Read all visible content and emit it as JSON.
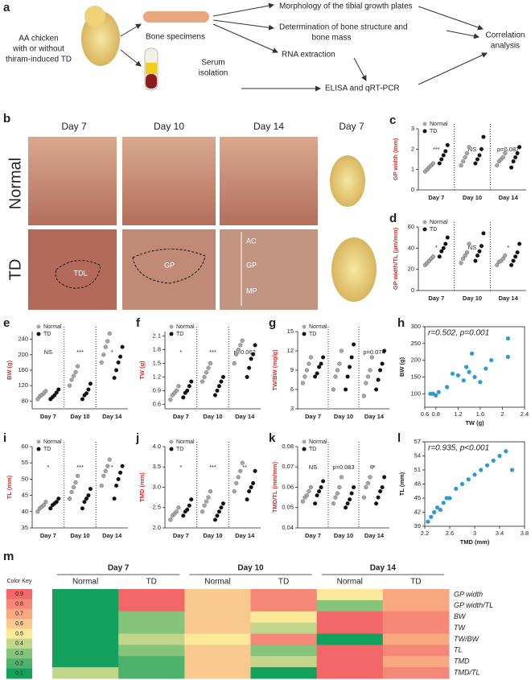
{
  "figure": {
    "a": {
      "label": "a",
      "source": [
        "AA chicken",
        "with or without",
        "thiram-induced TD"
      ],
      "bone": "Bone specimens",
      "serum": [
        "Serum",
        "isolation"
      ],
      "morphology": "Morphology of the tibial growth plates",
      "structure": [
        "Determination of bone structure and",
        "bone mass"
      ],
      "rna": "RNA extraction",
      "elisa": "ELISA and qRT-PCR",
      "correlation": [
        "Correlation",
        "analysis"
      ]
    },
    "b": {
      "label": "b",
      "days": [
        "Day 7",
        "Day 10",
        "Day 14",
        "Day 7"
      ],
      "rows": [
        "Normal",
        "TD"
      ],
      "annotations": [
        "TDL",
        "GP",
        "AC",
        "GP",
        "MP"
      ]
    }
  },
  "chart_data": [
    {
      "type": "dotplot",
      "panel": "c",
      "ylabel": "GP width (mm)",
      "categories": [
        "Day 7",
        "Day 10",
        "Day 14"
      ],
      "series": [
        {
          "name": "Normal",
          "color": "#a6a6a6",
          "values": [
            [
              0.9,
              1.0,
              1.1,
              1.2,
              1.3
            ],
            [
              1.2,
              1.4,
              1.6,
              1.8,
              2.1
            ],
            [
              1.2,
              1.4,
              1.5,
              1.6,
              1.8
            ]
          ]
        },
        {
          "name": "TD",
          "color": "#111111",
          "values": [
            [
              1.3,
              1.5,
              1.7,
              1.9,
              2.2
            ],
            [
              1.3,
              1.5,
              1.7,
              2.0,
              2.6
            ],
            [
              1.1,
              1.4,
              1.6,
              1.8,
              2.1
            ]
          ]
        }
      ],
      "ylim": [
        0,
        3
      ],
      "yticks": [
        0,
        1,
        2,
        3
      ],
      "significance": [
        "***",
        "NS",
        "p=0.087"
      ]
    },
    {
      "type": "dotplot",
      "panel": "d",
      "ylabel": "GP width/TL (μm/mm)",
      "categories": [
        "Day 7",
        "Day 10",
        "Day 14"
      ],
      "series": [
        {
          "name": "Normal",
          "color": "#a6a6a6",
          "values": [
            [
              24,
              26,
              28,
              30,
              32
            ],
            [
              26,
              30,
              33,
              36,
              44
            ],
            [
              24,
              27,
              28,
              30,
              33
            ]
          ]
        },
        {
          "name": "TD",
          "color": "#111111",
          "values": [
            [
              32,
              37,
              40,
              44,
              50
            ],
            [
              28,
              33,
              37,
              42,
              54
            ],
            [
              24,
              28,
              32,
              36,
              44
            ]
          ]
        }
      ],
      "ylim": [
        0,
        60
      ],
      "yticks": [
        0,
        20,
        40,
        60
      ],
      "significance": [
        "*",
        "NS",
        "*"
      ]
    },
    {
      "type": "dotplot",
      "panel": "e",
      "ylabel": "BW (g)",
      "categories": [
        "Day 7",
        "Day 10",
        "Day 14"
      ],
      "series": [
        {
          "name": "Normal",
          "color": "#a6a6a6",
          "values": [
            [
              85,
              92,
              96,
              100,
              106
            ],
            [
              120,
              135,
              145,
              155,
              170
            ],
            [
              180,
              200,
              220,
              235,
              255
            ]
          ]
        },
        {
          "name": "TD",
          "color": "#111111",
          "values": [
            [
              85,
              90,
              95,
              102,
              110
            ],
            [
              85,
              95,
              100,
              110,
              125
            ],
            [
              140,
              160,
              180,
              195,
              220
            ]
          ]
        }
      ],
      "ylim": [
        60,
        260
      ],
      "yticks": [
        80,
        120,
        160,
        200,
        240
      ],
      "significance": [
        "NS",
        "***",
        "*"
      ]
    },
    {
      "type": "dotplot",
      "panel": "f",
      "ylabel": "TW (g)",
      "categories": [
        "Day 7",
        "Day 10",
        "Day 14"
      ],
      "series": [
        {
          "name": "Normal",
          "color": "#a6a6a6",
          "values": [
            [
              0.7,
              0.8,
              0.85,
              0.9,
              1.0
            ],
            [
              1.1,
              1.2,
              1.3,
              1.4,
              1.5
            ],
            [
              1.5,
              1.7,
              1.8,
              1.9,
              2.0
            ]
          ]
        },
        {
          "name": "TD",
          "color": "#111111",
          "values": [
            [
              0.75,
              0.85,
              0.9,
              1.0,
              1.1
            ],
            [
              0.8,
              0.9,
              1.0,
              1.1,
              1.2
            ],
            [
              1.2,
              1.4,
              1.6,
              1.7,
              1.9
            ]
          ]
        }
      ],
      "ylim": [
        0.5,
        2.2
      ],
      "yticks": [
        0.6,
        0.9,
        1.2,
        1.5,
        1.8,
        2.1
      ],
      "significance": [
        "*",
        "***",
        "p=0.062"
      ]
    },
    {
      "type": "dotplot",
      "panel": "g",
      "ylabel": "TW/BW (mg/g)",
      "categories": [
        "Day 7",
        "Day 10",
        "Day 14"
      ],
      "series": [
        {
          "name": "Normal",
          "color": "#a6a6a6",
          "values": [
            [
              7,
              8,
              9,
              10,
              11
            ],
            [
              6,
              8,
              9,
              10,
              12
            ],
            [
              5,
              7,
              8,
              9,
              11
            ]
          ]
        },
        {
          "name": "TD",
          "color": "#111111",
          "values": [
            [
              8,
              8.5,
              9.5,
              10,
              11
            ],
            [
              6,
              8,
              9.5,
              11,
              13
            ],
            [
              6,
              7.5,
              9,
              10,
              12
            ]
          ]
        }
      ],
      "ylim": [
        3,
        15
      ],
      "yticks": [
        3,
        6,
        9,
        12,
        15
      ],
      "significance": [
        null,
        null,
        "p=0.074"
      ]
    },
    {
      "type": "dotplot",
      "panel": "i",
      "ylabel": "TL (mm)",
      "categories": [
        "Day 7",
        "Day 10",
        "Day 14"
      ],
      "series": [
        {
          "name": "Normal",
          "color": "#a6a6a6",
          "values": [
            [
              40,
              41,
              41.5,
              42,
              43
            ],
            [
              44,
              46,
              47.5,
              49,
              51
            ],
            [
              48,
              51,
              52.5,
              54,
              56
            ]
          ]
        },
        {
          "name": "TD",
          "color": "#111111",
          "values": [
            [
              41,
              42,
              42.5,
              43,
              44
            ],
            [
              41,
              43,
              44,
              45,
              47
            ],
            [
              44,
              48,
              50,
              52,
              54
            ]
          ]
        }
      ],
      "ylim": [
        35,
        60
      ],
      "yticks": [
        35,
        40,
        45,
        50,
        55,
        60
      ],
      "significance": [
        "*",
        "***",
        "*"
      ]
    },
    {
      "type": "dotplot",
      "panel": "j",
      "ylabel": "TMD (mm)",
      "categories": [
        "Day 7",
        "Day 10",
        "Day 14"
      ],
      "series": [
        {
          "name": "Normal",
          "color": "#a6a6a6",
          "values": [
            [
              2.2,
              2.3,
              2.35,
              2.4,
              2.5
            ],
            [
              2.4,
              2.55,
              2.65,
              2.75,
              2.9
            ],
            [
              2.9,
              3.1,
              3.25,
              3.4,
              3.6
            ]
          ]
        },
        {
          "name": "TD",
          "color": "#111111",
          "values": [
            [
              2.3,
              2.4,
              2.45,
              2.55,
              2.7
            ],
            [
              2.2,
              2.3,
              2.4,
              2.5,
              2.6
            ],
            [
              2.7,
              2.9,
              3.0,
              3.1,
              3.4
            ]
          ]
        }
      ],
      "ylim": [
        2.0,
        4.0
      ],
      "yticks": [
        {
          "value": 2,
          "label": "2.0"
        },
        2.5,
        {
          "value": 3,
          "label": "3.0"
        },
        3.5,
        {
          "value": 4,
          "label": "4.0"
        }
      ],
      "significance": [
        "*",
        "***",
        "**"
      ]
    },
    {
      "type": "dotplot",
      "panel": "k",
      "ylabel": "TMD/TL (mm/mm)",
      "categories": [
        "Day 7",
        "Day 10",
        "Day 14"
      ],
      "series": [
        {
          "name": "Normal",
          "color": "#a6a6a6",
          "values": [
            [
              0.053,
              0.055,
              0.056,
              0.058,
              0.06
            ],
            [
              0.052,
              0.055,
              0.057,
              0.06,
              0.065
            ],
            [
              0.055,
              0.06,
              0.062,
              0.065,
              0.07
            ]
          ]
        },
        {
          "name": "TD",
          "color": "#111111",
          "values": [
            [
              0.052,
              0.056,
              0.058,
              0.06,
              0.063
            ],
            [
              0.05,
              0.052,
              0.054,
              0.057,
              0.06
            ],
            [
              0.052,
              0.055,
              0.058,
              0.06,
              0.065
            ]
          ]
        }
      ],
      "ylim": [
        0.04,
        0.08
      ],
      "yticks": [
        0.04,
        0.05,
        0.06,
        0.07,
        0.08
      ],
      "significance": [
        "NS",
        "p=0.083",
        "*"
      ]
    },
    {
      "type": "scatter",
      "panel": "h",
      "xlabel": "TW (g)",
      "ylabel": "BW (g)",
      "annotation": "r=0.502, p=0.001",
      "color": "#2b9bd0",
      "x": [
        0.7,
        0.75,
        0.8,
        0.85,
        1.0,
        1.1,
        1.2,
        1.3,
        1.35,
        1.4,
        1.45,
        1.5,
        1.6,
        1.7,
        1.8,
        2.1,
        2.1
      ],
      "y": [
        100,
        100,
        95,
        105,
        120,
        160,
        155,
        140,
        180,
        165,
        220,
        150,
        135,
        175,
        200,
        210,
        265
      ],
      "xlim": [
        0.6,
        2.4
      ],
      "xticks": [
        0.6,
        0.8,
        1.2,
        1.6,
        2,
        2.4
      ],
      "ylim": [
        60,
        300
      ],
      "yticks": [
        100,
        150,
        200,
        250,
        300
      ]
    },
    {
      "type": "scatter",
      "panel": "l",
      "xlabel": "TMD (mm)",
      "ylabel": "TL (mm)",
      "annotation": "r=0.935, p<0.001",
      "color": "#2b9bd0",
      "x": [
        2.25,
        2.3,
        2.35,
        2.4,
        2.45,
        2.5,
        2.55,
        2.6,
        2.7,
        2.8,
        2.9,
        3.0,
        3.1,
        3.2,
        3.3,
        3.4,
        3.5,
        3.6
      ],
      "y": [
        40,
        41,
        42,
        43,
        42.5,
        44,
        45,
        45,
        47,
        48,
        49,
        50,
        51,
        52,
        53,
        54,
        55,
        51
      ],
      "xlim": [
        2.2,
        3.8
      ],
      "xticks": [
        2.2,
        2.6,
        3,
        3.4,
        3.8
      ],
      "ylim": [
        39,
        57
      ],
      "yticks": [
        39,
        42,
        45,
        48,
        51,
        54,
        57
      ]
    },
    {
      "type": "heatmap",
      "panel": "m",
      "days": [
        "Day 7",
        "Day 10",
        "Day 14"
      ],
      "columns": [
        "Normal",
        "TD",
        "Normal",
        "TD",
        "Normal",
        "TD"
      ],
      "rows": [
        "GP width",
        "GP width/TL",
        "BW",
        "TW",
        "TW/BW",
        "TL",
        "TMD",
        "TMD/TL"
      ],
      "row_colors": [
        "#e53935",
        "#e53935",
        "#9a9a1e",
        "#9a9a1e",
        "#9a9a1e",
        "#2e9e3e",
        "#2e9e3e",
        "#2e9e3e"
      ],
      "values": [
        [
          0.1,
          0.9,
          0.6,
          0.8,
          0.5,
          0.7
        ],
        [
          0.1,
          0.9,
          0.6,
          0.8,
          0.3,
          0.7
        ],
        [
          0.1,
          0.3,
          0.6,
          0.5,
          0.9,
          0.8
        ],
        [
          0.1,
          0.3,
          0.6,
          0.4,
          0.9,
          0.8
        ],
        [
          0.1,
          0.4,
          0.5,
          0.8,
          0.1,
          0.7
        ],
        [
          0.1,
          0.3,
          0.6,
          0.3,
          0.9,
          0.8
        ],
        [
          0.1,
          0.2,
          0.6,
          0.4,
          0.9,
          0.7
        ],
        [
          0.4,
          0.2,
          0.6,
          0.1,
          0.9,
          0.8
        ]
      ],
      "color_key": {
        "title": "Color Key",
        "values": [
          0.9,
          0.8,
          0.7,
          0.6,
          0.5,
          0.4,
          0.3,
          0.2,
          0.1
        ]
      },
      "colors": {
        "low": "#12a05c",
        "mid": "#fbe89a",
        "high": "#f26768"
      }
    }
  ]
}
